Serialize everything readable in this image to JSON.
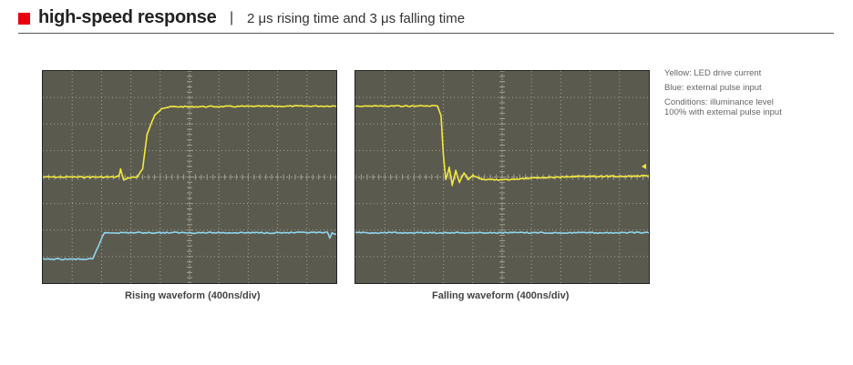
{
  "header": {
    "title": "high-speed response",
    "separator": "|",
    "subtitle": "2 μs rising time and 3 μs falling time"
  },
  "notes": {
    "yellow": "Yellow: LED drive current",
    "blue": "Blue: external pulse input",
    "conditions_line1": "Conditions: illuminance level",
    "conditions_line2": "100% with external pulse input"
  },
  "colors": {
    "accent": "#e60012",
    "scope_background": "#5b5a4f",
    "grid": "#a3a291",
    "yellow_trace": "#f2ea3c",
    "blue_trace": "#8fd6ee"
  },
  "chart_data": [
    {
      "type": "line",
      "title": "Rising waveform (400ns/div)",
      "x_divisions": 10,
      "y_divisions": 8,
      "x_unit": "div",
      "y_unit": "div",
      "xlim": [
        0,
        10
      ],
      "ylim": [
        -4,
        4
      ],
      "grid": true,
      "series": [
        {
          "name": "Yellow: LED drive current",
          "color": "#f2ea3c",
          "points": [
            [
              0,
              0
            ],
            [
              2.5,
              0
            ],
            [
              2.6,
              0.05
            ],
            [
              2.65,
              0.3
            ],
            [
              2.75,
              -0.1
            ],
            [
              2.9,
              -0.05
            ],
            [
              3.2,
              0
            ],
            [
              3.4,
              0.3
            ],
            [
              3.55,
              1.6
            ],
            [
              3.8,
              2.3
            ],
            [
              4.05,
              2.6
            ],
            [
              4.4,
              2.65
            ],
            [
              10,
              2.68
            ]
          ]
        },
        {
          "name": "Blue: external pulse input",
          "color": "#8fd6ee",
          "points": [
            [
              0,
              -3.1
            ],
            [
              1.7,
              -3.1
            ],
            [
              1.95,
              -2.45
            ],
            [
              2.1,
              -2.1
            ],
            [
              9.7,
              -2.1
            ],
            [
              9.78,
              -2.3
            ],
            [
              9.85,
              -2.1
            ],
            [
              10,
              -2.15
            ]
          ]
        }
      ]
    },
    {
      "type": "line",
      "title": "Falling waveform (400ns/div)",
      "x_divisions": 10,
      "y_divisions": 8,
      "x_unit": "div",
      "y_unit": "div",
      "xlim": [
        0,
        10
      ],
      "ylim": [
        -4,
        4
      ],
      "grid": true,
      "series": [
        {
          "name": "Yellow: LED drive current",
          "color": "#f2ea3c",
          "points": [
            [
              0,
              2.68
            ],
            [
              2.8,
              2.68
            ],
            [
              2.92,
              2.3
            ],
            [
              3.0,
              0.8
            ],
            [
              3.08,
              -0.1
            ],
            [
              3.2,
              0.35
            ],
            [
              3.3,
              -0.3
            ],
            [
              3.42,
              0.25
            ],
            [
              3.55,
              -0.2
            ],
            [
              3.7,
              0.15
            ],
            [
              3.85,
              -0.12
            ],
            [
              4.0,
              0.06
            ],
            [
              4.3,
              -0.08
            ],
            [
              5.0,
              -0.12
            ],
            [
              6.0,
              -0.04
            ],
            [
              7.5,
              0.02
            ],
            [
              10,
              0.04
            ]
          ]
        },
        {
          "name": "Blue: external pulse input",
          "color": "#8fd6ee",
          "points": [
            [
              0,
              -2.1
            ],
            [
              10,
              -2.1
            ]
          ]
        }
      ]
    }
  ]
}
